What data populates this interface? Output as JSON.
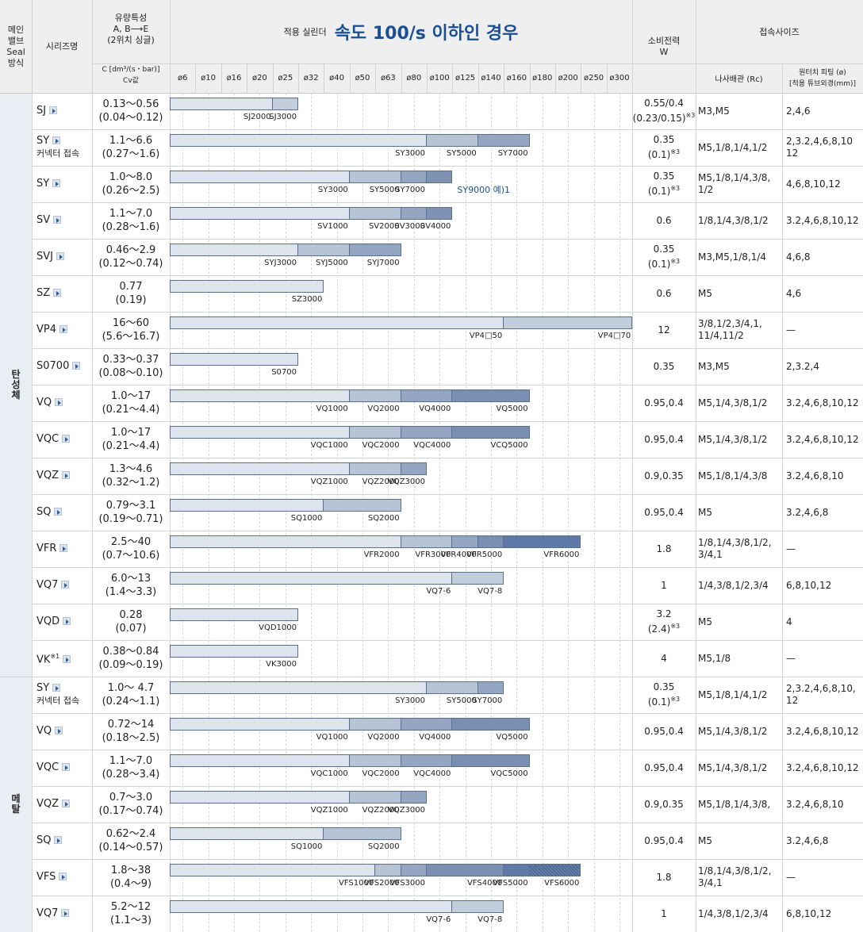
{
  "header": {
    "main_valve_seal": [
      "메인",
      "밸브",
      "Seal",
      "방식"
    ],
    "series_name": "시리즈명",
    "flow_title": [
      "유량특성",
      "A, B⟶E",
      "(2위치 싱글)"
    ],
    "flow_unit": [
      "C [dm³/(s・bar)]",
      "Cv값"
    ],
    "cylinder_prefix": "적용 실린더",
    "cylinder_title": "속도 100/s 이하인 경우",
    "bore_sizes": [
      "ø6",
      "ø10",
      "ø16",
      "ø20",
      "ø25",
      "ø32",
      "ø40",
      "ø50",
      "ø63",
      "ø80",
      "ø100",
      "ø125",
      "ø140",
      "ø160",
      "ø180",
      "ø200",
      "ø250",
      "ø300"
    ],
    "power_title": [
      "소비전력",
      "W"
    ],
    "conn_title": "접속사이즈",
    "conn_rc": "나사배관 (Rc)",
    "conn_fitting": [
      "원터치 피팅 (ø)",
      "[적용 튜브외경(mm)]"
    ]
  },
  "groups": [
    {
      "label": "탄성체"
    },
    {
      "label": "메탈"
    }
  ],
  "rows": [
    {
      "series": "SJ",
      "sub": "",
      "c": "0.13〜0.56",
      "cv": "(0.04〜0.12)",
      "power": "0.55/0.4",
      "power2": "(0.23/0.15)",
      "note": "※3",
      "rc": "M3,M5",
      "fit": "2,4,6",
      "segs": [
        {
          "end": 8,
          "label": "SJ2000",
          "color": "#dde4ee"
        },
        {
          "end": 10,
          "label": "SJ3000",
          "color": "#c3cedc"
        }
      ]
    },
    {
      "series": "SY",
      "sub": "커넥터 접속",
      "c": "1.1〜6.6",
      "cv": "(0.27〜1.6)",
      "power": "0.35",
      "power2": "(0.1)",
      "note": "※3",
      "rc": "M5,1/8,1/4,1/2",
      "fit": "2,3.2,4,6,8,10 12",
      "segs": [
        {
          "end": 20,
          "label": "SY3000",
          "color": "#dde4ee"
        },
        {
          "end": 24,
          "label": "SY5000",
          "color": "#b6c4d6"
        },
        {
          "end": 28,
          "label": "SY7000",
          "color": "#94a6c2"
        }
      ]
    },
    {
      "series": "SY",
      "sub": "",
      "c": "1.0〜8.0",
      "cv": "(0.26〜2.5)",
      "power": "0.35",
      "power2": "(0.1)",
      "note": "※3",
      "rc": "M5,1/8,1/4,3/8, 1/2",
      "fit": "4,6,8,10,12",
      "segs": [
        {
          "end": 14,
          "label": "SY3000",
          "color": "#dde4ee"
        },
        {
          "end": 18,
          "label": "SY5000",
          "color": "#b6c4d6"
        },
        {
          "end": 20,
          "label": "SY7000",
          "color": "#94a6c2"
        },
        {
          "end": 22,
          "label": "SY9000 예)1",
          "color": "#7e92b3",
          "blue": true
        }
      ]
    },
    {
      "series": "SV",
      "sub": "",
      "c": "1.1〜7.0",
      "cv": "(0.28〜1.6)",
      "power": "0.6",
      "power2": "",
      "note": "",
      "rc": "1/8,1/4,3/8,1/2",
      "fit": "3.2,4,6,8,10,12",
      "segs": [
        {
          "end": 14,
          "label": "SV1000",
          "color": "#dde4ee"
        },
        {
          "end": 18,
          "label": "SV2000",
          "color": "#b6c4d6"
        },
        {
          "end": 20,
          "label": "SV3000",
          "color": "#94a6c2"
        },
        {
          "end": 22,
          "label": "SV4000",
          "color": "#7e92b3"
        }
      ]
    },
    {
      "series": "SVJ",
      "sub": "",
      "c": "0.46〜2.9",
      "cv": "(0.12〜0.74)",
      "power": "0.35",
      "power2": "(0.1)",
      "note": "※3",
      "rc": "M3,M5,1/8,1/4",
      "fit": "4,6,8",
      "segs": [
        {
          "end": 10,
          "label": "SYJ3000",
          "color": "#dde4ee"
        },
        {
          "end": 14,
          "label": "SYJ5000",
          "color": "#b6c4d6"
        },
        {
          "end": 18,
          "label": "SYJ7000",
          "color": "#94a6c2"
        }
      ]
    },
    {
      "series": "SZ",
      "sub": "",
      "c": "0.77",
      "cv": "(0.19)",
      "power": "0.6",
      "power2": "",
      "note": "",
      "rc": "M5",
      "fit": "4,6",
      "segs": [
        {
          "end": 12,
          "label": "SZ3000",
          "color": "#dde4ee"
        }
      ]
    },
    {
      "series": "VP4",
      "sub": "",
      "c": "16〜60",
      "cv": "(5.6〜16.7)",
      "power": "12",
      "power2": "",
      "note": "",
      "rc": "3/8,1/2,3/4,1, 11/4,11/2",
      "fit": "—",
      "segs": [
        {
          "end": 26,
          "label": "VP4□50",
          "color": "#dde4ee"
        },
        {
          "end": 36,
          "label": "VP4□70",
          "color": "#c3cedc"
        }
      ]
    },
    {
      "series": "S0700",
      "sub": "",
      "c": "0.33〜0.37",
      "cv": "(0.08〜0.10)",
      "power": "0.35",
      "power2": "",
      "note": "",
      "rc": "M3,M5",
      "fit": "2,3.2,4",
      "segs": [
        {
          "end": 10,
          "label": "S0700",
          "color": "#dde4ee"
        }
      ]
    },
    {
      "series": "VQ",
      "sub": "",
      "c": "1.0〜17",
      "cv": "(0.21〜4.4)",
      "power": "0.95,0.4",
      "power2": "",
      "note": "",
      "rc": "M5,1/4,3/8,1/2",
      "fit": "3.2,4,6,8,10,12",
      "segs": [
        {
          "end": 14,
          "label": "VQ1000",
          "color": "#dde4ee"
        },
        {
          "end": 18,
          "label": "VQ2000",
          "color": "#b6c4d6"
        },
        {
          "end": 22,
          "label": "VQ4000",
          "color": "#94a6c2"
        },
        {
          "end": 28,
          "label": "VQ5000",
          "color": "#7a8fb2"
        }
      ]
    },
    {
      "series": "VQC",
      "sub": "",
      "c": "1.0〜17",
      "cv": "(0.21〜4.4)",
      "power": "0.95,0.4",
      "power2": "",
      "note": "",
      "rc": "M5,1/4,3/8,1/2",
      "fit": "3.2,4,6,8,10,12",
      "segs": [
        {
          "end": 14,
          "label": "VQC1000",
          "color": "#dde4ee"
        },
        {
          "end": 18,
          "label": "VQC2000",
          "color": "#b6c4d6"
        },
        {
          "end": 22,
          "label": "VQC4000",
          "color": "#94a6c2"
        },
        {
          "end": 28,
          "label": "VCQ5000",
          "color": "#7a8fb2"
        }
      ]
    },
    {
      "series": "VQZ",
      "sub": "",
      "c": "1.3〜4.6",
      "cv": "(0.32〜1.2)",
      "power": "0.9,0.35",
      "power2": "",
      "note": "",
      "rc": "M5,1/8,1/4,3/8",
      "fit": "3.2,4,6,8,10",
      "segs": [
        {
          "end": 14,
          "label": "VQZ1000",
          "color": "#dde4ee"
        },
        {
          "end": 18,
          "label": "VQZ2000",
          "color": "#b6c4d6"
        },
        {
          "end": 20,
          "label": "VQZ3000",
          "color": "#94a6c2"
        }
      ]
    },
    {
      "series": "SQ",
      "sub": "",
      "c": "0.79〜3.1",
      "cv": "(0.19〜0.71)",
      "power": "0.95,0.4",
      "power2": "",
      "note": "",
      "rc": "M5",
      "fit": "3.2,4,6,8",
      "segs": [
        {
          "end": 12,
          "label": "SQ1000",
          "color": "#dde4ee"
        },
        {
          "end": 18,
          "label": "SQ2000",
          "color": "#b6c4d6"
        }
      ]
    },
    {
      "series": "VFR",
      "sub": "",
      "c": "2.5〜40",
      "cv": "(0.7〜10.6)",
      "power": "1.8",
      "power2": "",
      "note": "",
      "rc": "1/8,1/4,3/8,1/2, 3/4,1",
      "fit": "—",
      "segs": [
        {
          "end": 18,
          "label": "VFR2000",
          "color": "#dde4ee"
        },
        {
          "end": 22,
          "label": "VFR3000",
          "color": "#b6c4d6"
        },
        {
          "end": 24,
          "label": "VFR4000",
          "color": "#94a6c2"
        },
        {
          "end": 26,
          "label": "VFR5000",
          "color": "#7a8fb2"
        },
        {
          "end": 32,
          "label": "VFR6000",
          "color": "#5f7aa6"
        }
      ]
    },
    {
      "series": "VQ7",
      "sub": "",
      "c": "6.0〜13",
      "cv": "(1.4〜3.3)",
      "power": "1",
      "power2": "",
      "note": "",
      "rc": "1/4,3/8,1/2,3/4",
      "fit": "6,8,10,12",
      "segs": [
        {
          "end": 22,
          "label": "VQ7-6",
          "color": "#dde4ee"
        },
        {
          "end": 26,
          "label": "VQ7-8",
          "color": "#c3cedc"
        }
      ]
    },
    {
      "series": "VQD",
      "sub": "",
      "c": "0.28",
      "cv": "(0.07)",
      "power": "3.2",
      "power2": "(2.4)",
      "note": "※3",
      "rc": "M5",
      "fit": "4",
      "segs": [
        {
          "end": 10,
          "label": "VQD1000",
          "color": "#dde4ee"
        }
      ]
    },
    {
      "series": "VK",
      "sub": "",
      "supnote": "※1",
      "c": "0.38〜0.84",
      "cv": "(0.09〜0.19)",
      "power": "4",
      "power2": "",
      "note": "",
      "rc": "M5,1/8",
      "fit": "—",
      "segs": [
        {
          "end": 10,
          "label": "VK3000",
          "color": "#dde4ee"
        }
      ]
    },
    {
      "series": "SY",
      "sub": "커넥터 접속",
      "c": "1.0〜 4.7",
      "cv": "(0.24〜1.1)",
      "power": "0.35",
      "power2": "(0.1)",
      "note": "※3",
      "rc": "M5,1/8,1/4,1/2",
      "fit": "2,3.2,4,6,8,10, 12",
      "segs": [
        {
          "end": 20,
          "label": "SY3000",
          "color": "#dde4ee"
        },
        {
          "end": 24,
          "label": "SY5000",
          "color": "#b6c4d6"
        },
        {
          "end": 26,
          "label": "SY7000",
          "color": "#94a6c2"
        }
      ]
    },
    {
      "series": "VQ",
      "sub": "",
      "c": "0.72〜14",
      "cv": "(0.18〜2.5)",
      "power": "0.95,0.4",
      "power2": "",
      "note": "",
      "rc": "M5,1/4,3/8,1/2",
      "fit": "3.2,4,6,8,10,12",
      "segs": [
        {
          "end": 14,
          "label": "VQ1000",
          "color": "#dde4ee"
        },
        {
          "end": 18,
          "label": "VQ2000",
          "color": "#b6c4d6"
        },
        {
          "end": 22,
          "label": "VQ4000",
          "color": "#94a6c2"
        },
        {
          "end": 28,
          "label": "VQ5000",
          "color": "#7a8fb2"
        }
      ]
    },
    {
      "series": "VQC",
      "sub": "",
      "c": "1.1〜7.0",
      "cv": "(0.28〜3.4)",
      "power": "0.95,0.4",
      "power2": "",
      "note": "",
      "rc": "M5,1/4,3/8,1/2",
      "fit": "3.2,4,6,8,10,12",
      "segs": [
        {
          "end": 14,
          "label": "VQC1000",
          "color": "#dde4ee"
        },
        {
          "end": 18,
          "label": "VQC2000",
          "color": "#b6c4d6"
        },
        {
          "end": 22,
          "label": "VQC4000",
          "color": "#94a6c2"
        },
        {
          "end": 28,
          "label": "VQC5000",
          "color": "#7a8fb2"
        }
      ]
    },
    {
      "series": "VQZ",
      "sub": "",
      "c": "0.7〜3.0",
      "cv": "(0.17〜0.74)",
      "power": "0.9,0.35",
      "power2": "",
      "note": "",
      "rc": "M5,1/8,1/4,3/8,",
      "fit": "3.2,4,6,8,10",
      "segs": [
        {
          "end": 14,
          "label": "VQZ1000",
          "color": "#dde4ee"
        },
        {
          "end": 18,
          "label": "VQZ2000",
          "color": "#b6c4d6"
        },
        {
          "end": 20,
          "label": "VQZ3000",
          "color": "#94a6c2"
        }
      ]
    },
    {
      "series": "SQ",
      "sub": "",
      "c": "0.62〜2.4",
      "cv": "(0.14〜0.57)",
      "power": "0.95,0.4",
      "power2": "",
      "note": "",
      "rc": "M5",
      "fit": "3.2,4,6,8",
      "segs": [
        {
          "end": 12,
          "label": "SQ1000",
          "color": "#dde4ee"
        },
        {
          "end": 18,
          "label": "SQ2000",
          "color": "#b6c4d6"
        }
      ]
    },
    {
      "series": "VFS",
      "sub": "",
      "c": "1.8〜38",
      "cv": "(0.4〜9)",
      "power": "1.8",
      "power2": "",
      "note": "",
      "rc": "1/8,1/4,3/8,1/2, 3/4,1",
      "fit": "—",
      "segs": [
        {
          "end": 16,
          "label": "VFS1000",
          "color": "#dde4ee"
        },
        {
          "end": 18,
          "label": "VFS2000",
          "color": "#b6c4d6"
        },
        {
          "end": 20,
          "label": "VFS3000",
          "color": "#94a6c2"
        },
        {
          "end": 26,
          "label": "VFS4000",
          "color": "#7a8fb2"
        },
        {
          "end": 28,
          "label": "VFS5000",
          "color": "#5f7aa6"
        },
        {
          "end": 32,
          "label": "VFS6000",
          "color": "#4f6a98",
          "hatch": true
        }
      ]
    },
    {
      "series": "VQ7",
      "sub": "",
      "c": "5.2〜12",
      "cv": "(1.1〜3)",
      "power": "1",
      "power2": "",
      "note": "",
      "rc": "1/4,3/8,1/2,3/4",
      "fit": "6,8,10,12",
      "segs": [
        {
          "end": 22,
          "label": "VQ7-6",
          "color": "#dde4ee"
        },
        {
          "end": 26,
          "label": "VQ7-8",
          "color": "#c3cedc"
        }
      ]
    }
  ]
}
